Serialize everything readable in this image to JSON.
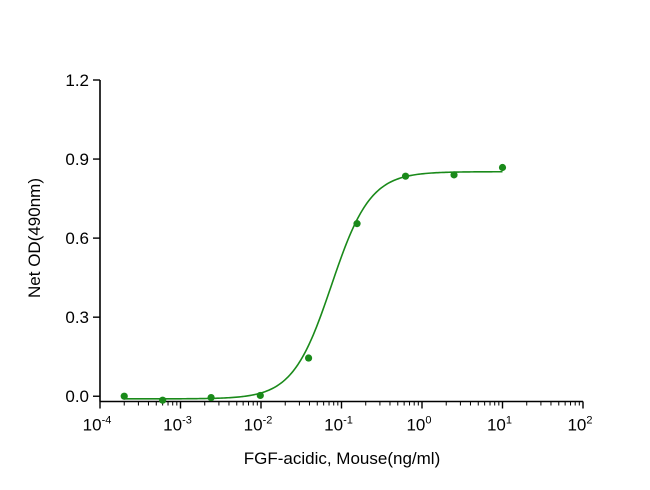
{
  "chart_data": {
    "type": "scatter",
    "title": "",
    "xlabel": "FGF-acidic, Mouse(ng/ml)",
    "ylabel": "Net OD(490nm)",
    "x_scale": "log10",
    "xlim": [
      0.0001,
      100
    ],
    "ylim": [
      -0.02,
      1.2
    ],
    "grid": false,
    "legend": "none",
    "color": "#1a8a1a",
    "x_ticks": [
      {
        "base": "10",
        "exp": "-4"
      },
      {
        "base": "10",
        "exp": "-3"
      },
      {
        "base": "10",
        "exp": "-2"
      },
      {
        "base": "10",
        "exp": "-1"
      },
      {
        "base": "10",
        "exp": "0"
      },
      {
        "base": "10",
        "exp": "1"
      },
      {
        "base": "10",
        "exp": "2"
      }
    ],
    "y_ticks": [
      "0.0",
      "0.3",
      "0.6",
      "0.9",
      "1.2"
    ],
    "series": [
      {
        "x": [
          0.0002,
          0.0006,
          0.0024,
          0.0098,
          0.039,
          0.156,
          0.625,
          2.5,
          10
        ],
        "y": [
          0.0,
          -0.015,
          -0.005,
          0.003,
          0.145,
          0.655,
          0.835,
          0.84,
          0.868
        ],
        "fit": {
          "model": "4PL",
          "bottom": -0.01,
          "top": 0.852,
          "ec50": 0.075,
          "hill": 1.8
        }
      }
    ]
  }
}
